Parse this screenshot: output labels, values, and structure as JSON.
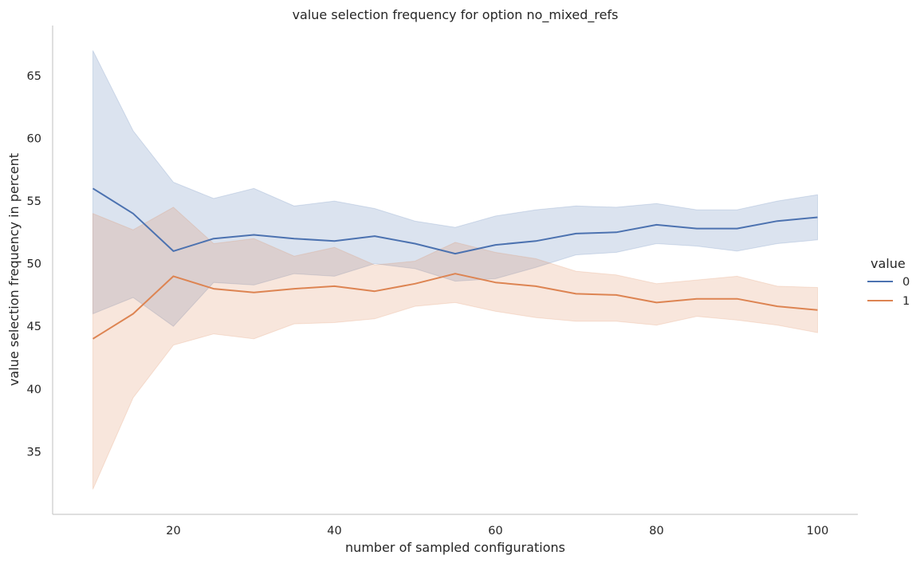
{
  "chart_data": {
    "type": "line",
    "title": "value selection frequency for option no_mixed_refs",
    "xlabel": "number of sampled configurations",
    "ylabel": "value selection frequency in percent",
    "x": [
      10,
      15,
      20,
      25,
      30,
      35,
      40,
      45,
      50,
      55,
      60,
      65,
      70,
      75,
      80,
      85,
      90,
      95,
      100
    ],
    "xlim": [
      5,
      105
    ],
    "ylim": [
      30,
      69
    ],
    "xticks": [
      20,
      40,
      60,
      80,
      100
    ],
    "yticks": [
      35,
      40,
      45,
      50,
      55,
      60,
      65
    ],
    "grid": false,
    "legend": {
      "title": "value",
      "placement": "right"
    },
    "series": [
      {
        "name": "0",
        "color": "#4c72b0",
        "values": [
          56.0,
          54.0,
          51.0,
          52.0,
          52.3,
          52.0,
          51.8,
          52.2,
          51.6,
          50.8,
          51.5,
          51.8,
          52.4,
          52.5,
          53.1,
          52.8,
          52.8,
          53.4,
          53.7
        ],
        "ci_low": [
          46.0,
          47.3,
          45.0,
          48.5,
          48.3,
          49.2,
          49.0,
          50.0,
          49.6,
          48.6,
          48.8,
          49.7,
          50.7,
          50.9,
          51.6,
          51.4,
          51.0,
          51.6,
          51.9
        ],
        "ci_high": [
          67.0,
          60.6,
          56.5,
          55.2,
          56.0,
          54.6,
          55.0,
          54.4,
          53.4,
          52.9,
          53.8,
          54.3,
          54.6,
          54.5,
          54.8,
          54.3,
          54.3,
          55.0,
          55.5
        ]
      },
      {
        "name": "1",
        "color": "#dd8452",
        "values": [
          44.0,
          46.0,
          49.0,
          48.0,
          47.7,
          48.0,
          48.2,
          47.8,
          48.4,
          49.2,
          48.5,
          48.2,
          47.6,
          47.5,
          46.9,
          47.2,
          47.2,
          46.6,
          46.3
        ],
        "ci_low": [
          32.0,
          39.3,
          43.5,
          44.4,
          44.0,
          45.2,
          45.3,
          45.6,
          46.6,
          46.9,
          46.2,
          45.7,
          45.4,
          45.4,
          45.1,
          45.8,
          45.5,
          45.1,
          44.5
        ],
        "ci_high": [
          54.0,
          52.7,
          54.5,
          51.6,
          52.0,
          50.6,
          51.3,
          49.9,
          50.2,
          51.7,
          50.9,
          50.4,
          49.4,
          49.1,
          48.4,
          48.7,
          49.0,
          48.2,
          48.1
        ]
      }
    ]
  }
}
